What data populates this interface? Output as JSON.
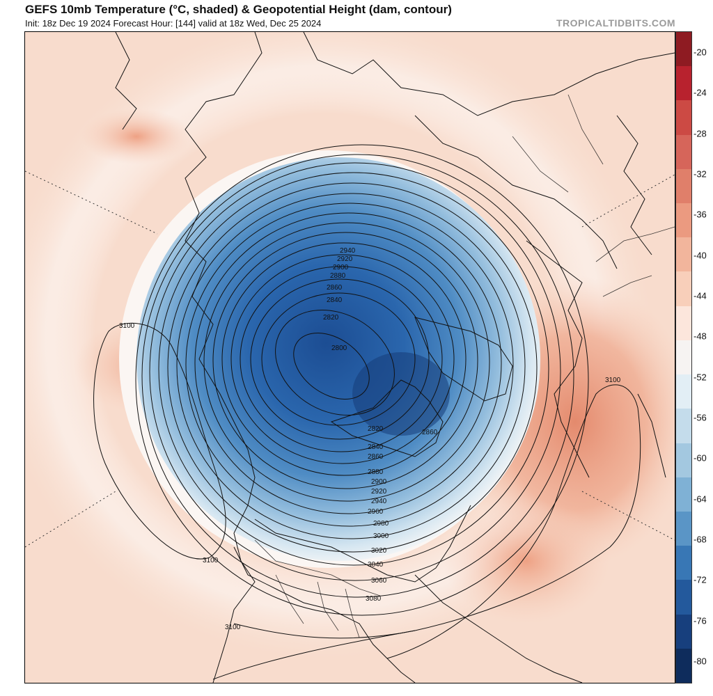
{
  "header": {
    "title": "GEFS 10mb Temperature (°C, shaded) & Geopotential Height (dam, contour)",
    "subtitle": "Init: 18z Dec 19 2024   Forecast Hour: [144]   valid at 18z Wed, Dec 25 2024",
    "watermark": "TROPICALTIDBITS.COM"
  },
  "colorbar": {
    "labels": [
      "-20",
      "-24",
      "-28",
      "-32",
      "-36",
      "-40",
      "-44",
      "-48",
      "-52",
      "-56",
      "-60",
      "-64",
      "-68",
      "-72",
      "-76",
      "-80"
    ],
    "colors": [
      "#8e1b22",
      "#b8222e",
      "#cc4a44",
      "#d6655a",
      "#e07f6a",
      "#eb9a80",
      "#f2b59c",
      "#f8cfba",
      "#fce6dc",
      "#f6f3f2",
      "#e2eef5",
      "#c4dceb",
      "#a3c8e0",
      "#7fb1d5",
      "#5a95c6",
      "#3877b5",
      "#23599c",
      "#173f7d",
      "#0e2c5c"
    ]
  },
  "map": {
    "contour_labels": [
      "3100",
      "3100",
      "3100",
      "3100",
      "2940",
      "2920",
      "2900",
      "2880",
      "2860",
      "2840",
      "2820",
      "2800",
      "2820",
      "2840",
      "2860",
      "2860",
      "2880",
      "2900",
      "2920",
      "2940",
      "2960",
      "2980",
      "3000",
      "3020",
      "3040",
      "3060",
      "3080"
    ]
  }
}
